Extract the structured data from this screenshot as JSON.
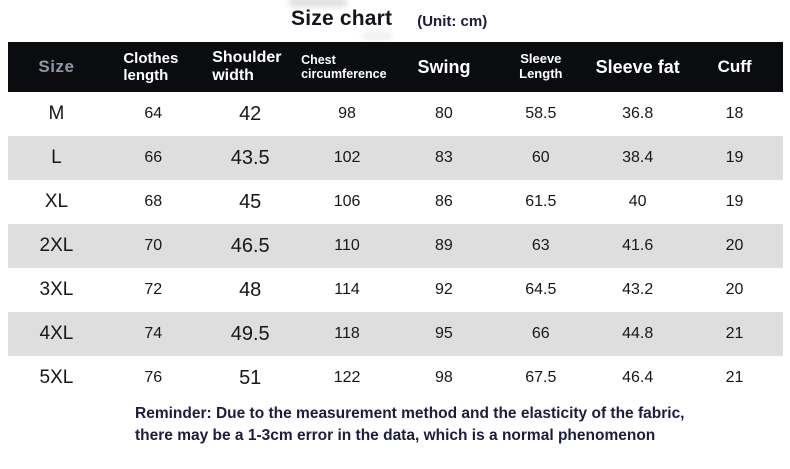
{
  "page": {
    "title": "Size chart",
    "unit_label": "(Unit: cm)",
    "reminder_line1": "Reminder: Due to the measurement method and the elasticity of the fabric,",
    "reminder_line2": "there may be a 1-3cm error in the data, which is a normal phenomenon"
  },
  "colors": {
    "header_background": "#0a0c10",
    "header_text": "#ffffff",
    "size_header_text": "#8e99a6",
    "stripe_row": "#dedede",
    "body_text": "#17171b",
    "reminder_text": "#1c1c3c"
  },
  "chart_data": {
    "type": "table",
    "title": "Size chart (Unit: cm)",
    "columns": [
      "Size",
      "Clothes length",
      "Shoulder width",
      "Chest circumference",
      "Swing",
      "Sleeve Length",
      "Sleeve fat",
      "Cuff"
    ],
    "rows": [
      [
        "M",
        64,
        42,
        98,
        80,
        58.5,
        36.8,
        18
      ],
      [
        "L",
        66,
        43.5,
        102,
        83,
        60,
        38.4,
        19
      ],
      [
        "XL",
        68,
        45,
        106,
        86,
        61.5,
        40,
        19
      ],
      [
        "2XL",
        70,
        46.5,
        110,
        89,
        63,
        41.6,
        20
      ],
      [
        "3XL",
        72,
        48,
        114,
        92,
        64.5,
        43.2,
        20
      ],
      [
        "4XL",
        74,
        49.5,
        118,
        95,
        66,
        44.8,
        21
      ],
      [
        "5XL",
        76,
        51,
        122,
        98,
        67.5,
        46.4,
        21
      ]
    ],
    "layout": {
      "striped_rows": true,
      "stripe_pattern": "even rows gray",
      "header_style": "black bar, white bold text"
    }
  }
}
